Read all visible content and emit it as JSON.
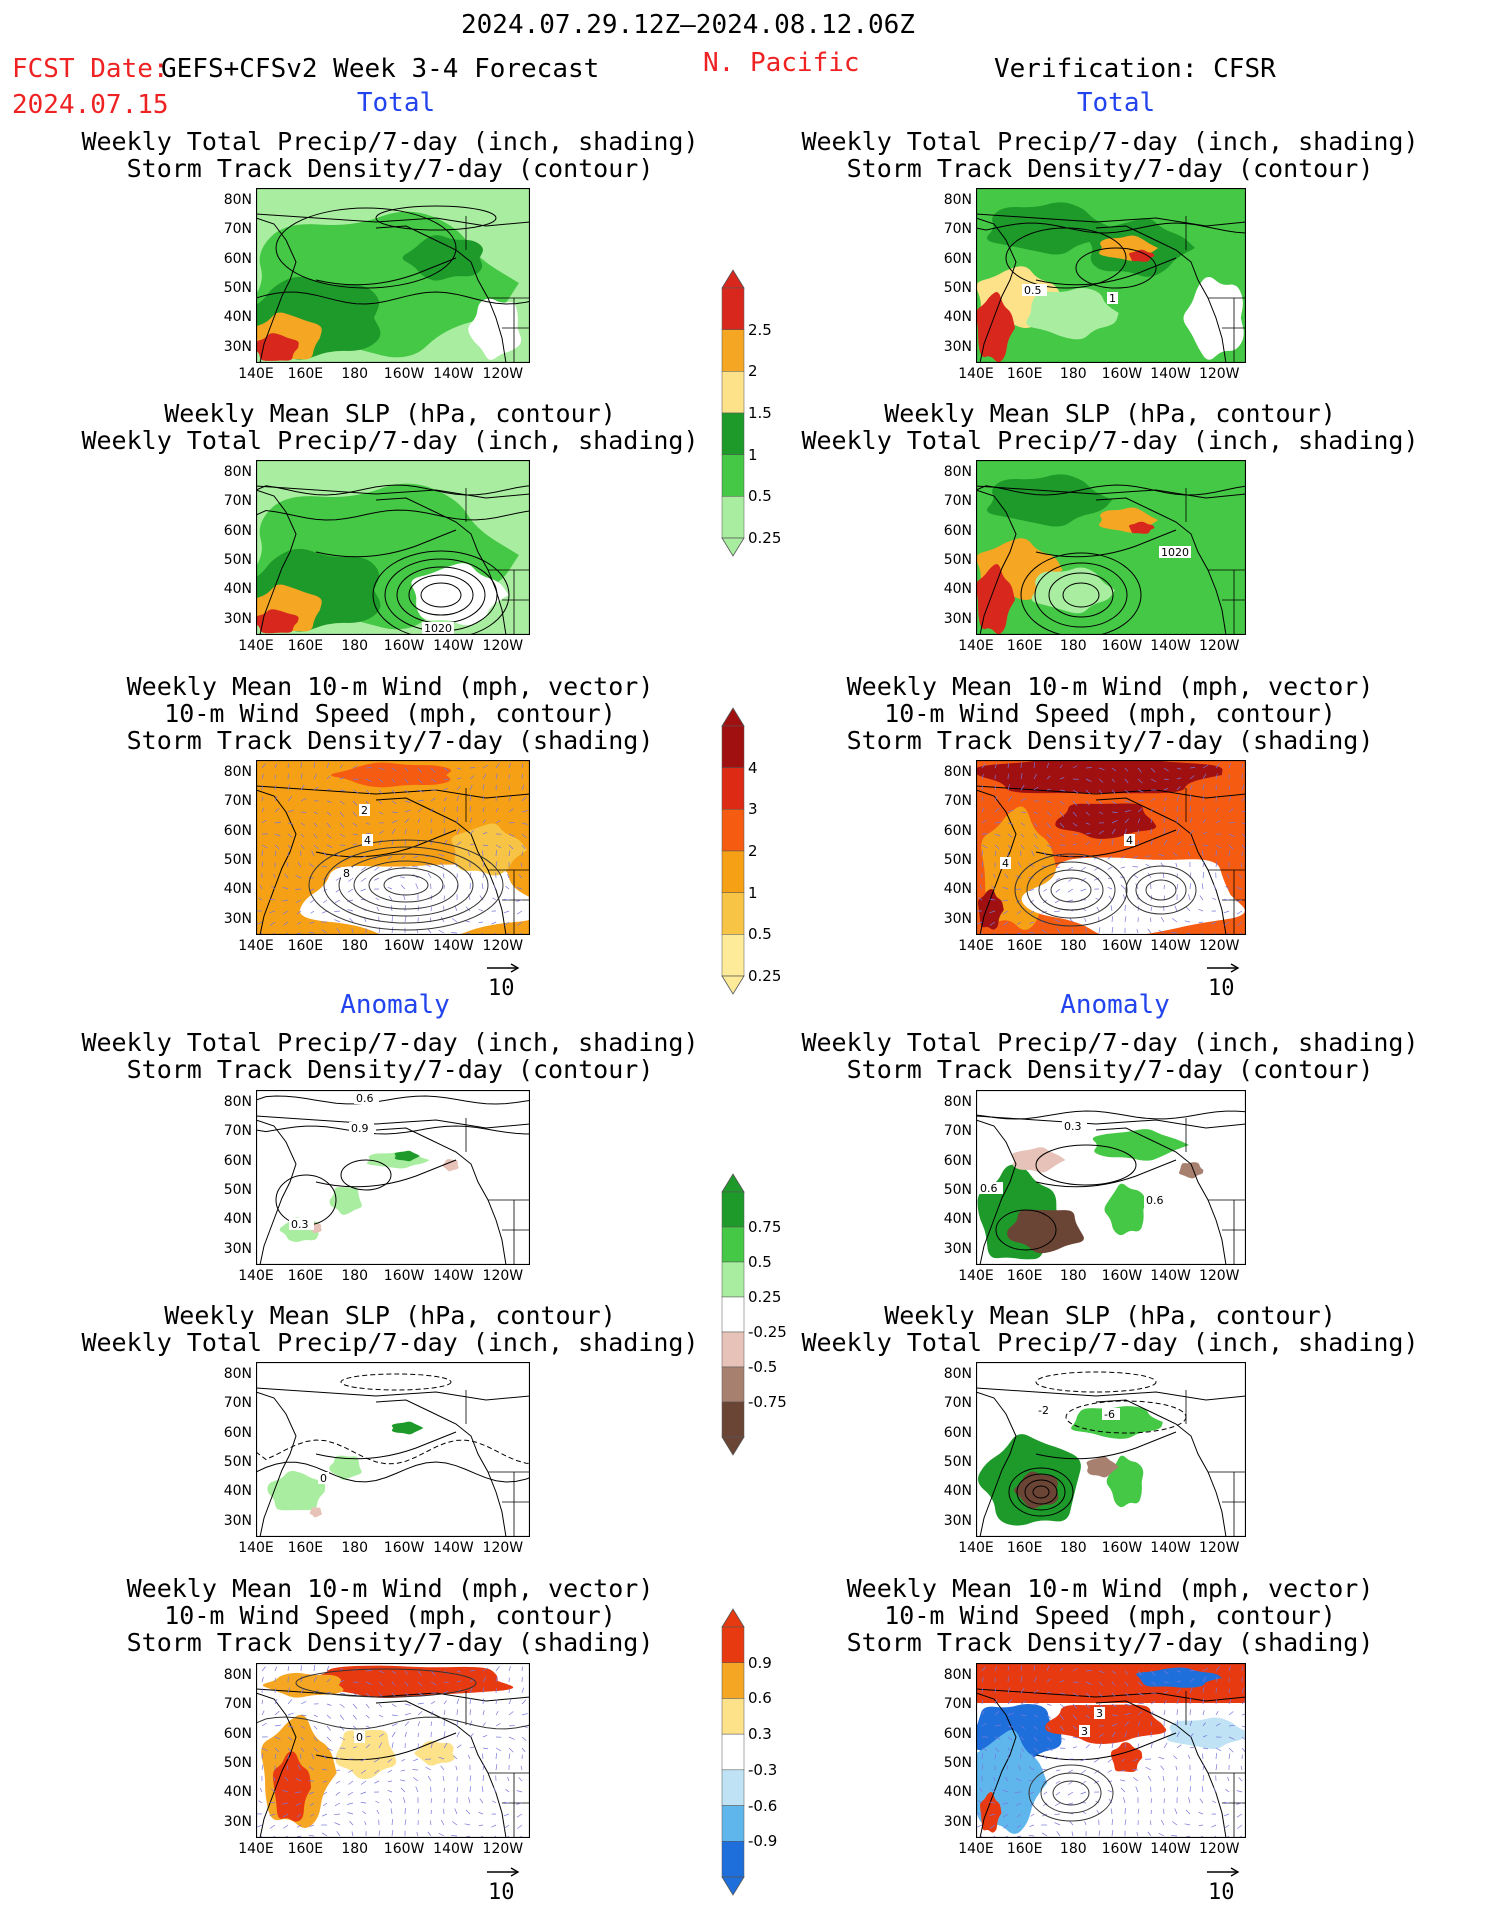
{
  "header": {
    "period": "2024.07.29.12Z–2024.08.12.06Z",
    "fcst_date_label": "FCST Date:",
    "model_title": "GEFS+CFSv2 Week 3-4 Forecast",
    "fcst_date": "2024.07.15",
    "region": "N. Pacific",
    "verification": "Verification: CFSR"
  },
  "sections": {
    "total": "Total",
    "anomaly": "Anomaly"
  },
  "panel_titles": {
    "precip_storm": "Weekly Total Precip/7-day (inch, shading)\nStorm Track Density/7-day (contour)",
    "slp_precip": "Weekly Mean SLP (hPa, contour)\nWeekly Total Precip/7-day (inch, shading)",
    "wind_storm": "Weekly Mean 10-m Wind (mph, vector)\n10-m Wind Speed (mph, contour)\nStorm Track Density/7-day (shading)"
  },
  "axes": {
    "lat_ticks": [
      "80N",
      "70N",
      "60N",
      "50N",
      "40N",
      "30N"
    ],
    "lon_ticks": [
      "140E",
      "160E",
      "180",
      "160W",
      "140W",
      "120W"
    ]
  },
  "vector_scale": "10",
  "colorbars": {
    "precip_total": {
      "labels": [
        "2.5",
        "2",
        "1.5",
        "1",
        "0.5",
        "0.25"
      ],
      "colors": [
        "#d8281e",
        "#f5a623",
        "#fde28a",
        "#1e9a2a",
        "#45c845",
        "#a9eea0"
      ]
    },
    "storm_total": {
      "labels": [
        "4",
        "3",
        "2",
        "1",
        "0.5",
        "0.25"
      ],
      "colors": [
        "#a01010",
        "#dd2a14",
        "#f55c12",
        "#f6a016",
        "#f8c446",
        "#fdeb9a"
      ]
    },
    "precip_anom": {
      "labels": [
        "0.75",
        "0.5",
        "0.25",
        "-0.25",
        "-0.5",
        "-0.75"
      ],
      "colors": [
        "#1e9a2a",
        "#45c845",
        "#a9eea0",
        "#ffffff",
        "#e6c2b8",
        "#a88070",
        "#6a4434"
      ]
    },
    "storm_anom": {
      "labels": [
        "0.9",
        "0.6",
        "0.3",
        "-0.3",
        "-0.6",
        "-0.9"
      ],
      "colors": [
        "#e83a10",
        "#f5a623",
        "#fde28a",
        "#ffffff",
        "#bfe3f5",
        "#5fb6ec",
        "#1e6fdb"
      ]
    },
    "outline": "#555555"
  },
  "contour_labels": {
    "r1": "0.5",
    "r1b": "1",
    "r2": "1020",
    "r2l": "1020",
    "l3a": "2",
    "l3b": "4",
    "l3c": "8",
    "r3a": "4",
    "r3b": "4",
    "l4a": "0.6",
    "l4b": "0.9",
    "l4c": "0.3",
    "r4a": "0.3",
    "r4b": "0.6",
    "r4c": "0.6",
    "l5": "0",
    "r5a": "-2",
    "r5b": "-6",
    "l6": "0",
    "r6a": "3",
    "r6b": "3"
  }
}
